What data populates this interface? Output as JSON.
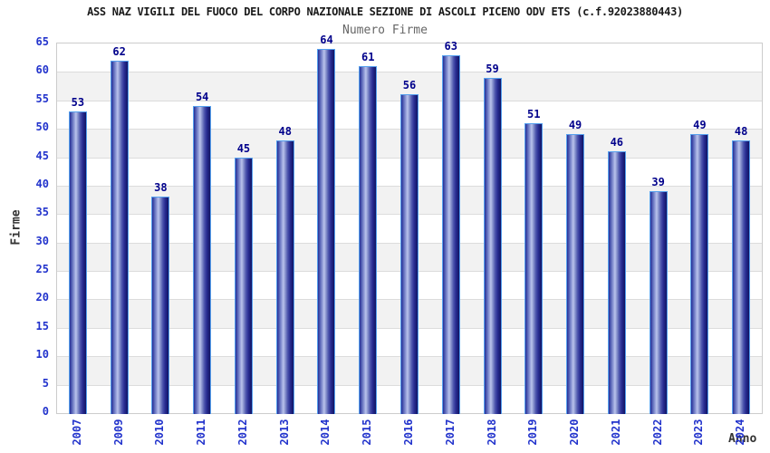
{
  "chart_data": {
    "type": "bar",
    "title": "ASS NAZ VIGILI DEL FUOCO DEL CORPO NAZIONALE SEZIONE DI ASCOLI PICENO ODV ETS (c.f.92023880443)",
    "subtitle": "Numero Firme",
    "xlabel": "Anno",
    "ylabel": "Firme",
    "categories": [
      "2007",
      "2009",
      "2010",
      "2011",
      "2012",
      "2013",
      "2014",
      "2015",
      "2016",
      "2017",
      "2018",
      "2019",
      "2020",
      "2021",
      "2022",
      "2023",
      "2024"
    ],
    "values": [
      53,
      62,
      38,
      54,
      45,
      48,
      64,
      61,
      56,
      63,
      59,
      51,
      49,
      46,
      39,
      49,
      48
    ],
    "ylim": [
      0,
      65
    ],
    "ytick_step": 5,
    "grid": "horizontal-alternating-bands",
    "legend": "none",
    "colors": {
      "bar_outline": "#55a0ee",
      "bar_dark": "#101463",
      "bar_light": "#bac3ec",
      "tick_label": "#2233cc",
      "value_label": "#00008b",
      "title": "#1a1a1a",
      "subtitle": "#666666",
      "axis_label": "#333333",
      "band": "#f2f2f2",
      "gridline": "#dcdcdc",
      "plot_border": "#cccccc"
    }
  }
}
